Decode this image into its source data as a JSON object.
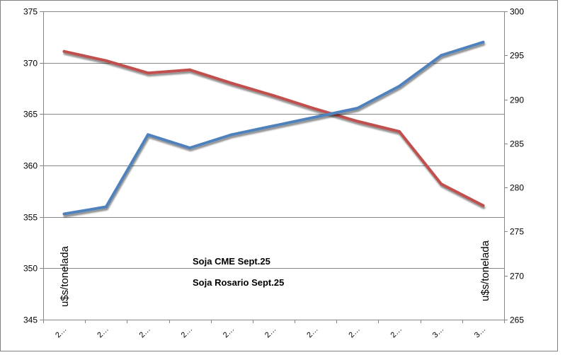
{
  "chart_data": {
    "type": "line",
    "categories": [
      "2…",
      "2…",
      "2…",
      "2…",
      "2…",
      "2…",
      "2…",
      "2…",
      "2…",
      "3…",
      "3…"
    ],
    "ylabel": "u$s/tonelada",
    "y2label": "u$s/tonelada",
    "ylim": [
      345,
      375
    ],
    "yticks": [
      345,
      350,
      355,
      360,
      365,
      370,
      375
    ],
    "y2lim": [
      265,
      300
    ],
    "y2ticks": [
      265,
      270,
      275,
      280,
      285,
      290,
      295,
      300
    ],
    "grid": true,
    "legend_position": "bottom-left",
    "series": [
      {
        "name": "Soja CME Sept.25",
        "axis": "left",
        "color": "#C0504D",
        "values": [
          371.1,
          370.2,
          369.0,
          369.3,
          368.0,
          366.8,
          365.5,
          364.3,
          363.3,
          358.2,
          356.1
        ]
      },
      {
        "name": "Soja Rosario Sept.25",
        "axis": "right",
        "color": "#4F81BD",
        "values": [
          277.0,
          277.8,
          286.0,
          284.5,
          286.0,
          287.0,
          288.0,
          289.0,
          291.5,
          295.0,
          296.5
        ]
      }
    ]
  }
}
